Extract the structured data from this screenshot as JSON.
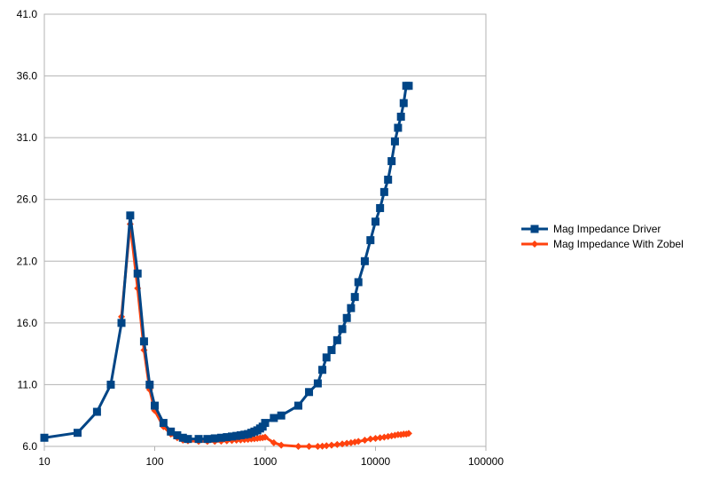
{
  "chart_data": {
    "type": "line",
    "x_scale": "log",
    "xlim": [
      10,
      100000
    ],
    "ylim": [
      6.0,
      41.0
    ],
    "y_ticks": [
      "6.0",
      "11.0",
      "16.0",
      "21.0",
      "26.0",
      "31.0",
      "36.0",
      "41.0"
    ],
    "x_ticks": [
      "10",
      "100",
      "1000",
      "10000",
      "100000"
    ],
    "grid": "horizontal",
    "legend_position": "right",
    "colors": {
      "driver": "#004586",
      "zobel": "#ff420e"
    },
    "series": [
      {
        "name": "Mag Impedance Driver",
        "color": "#004586",
        "marker": "square",
        "x": [
          10,
          20,
          30,
          40,
          50,
          60,
          70,
          80,
          90,
          100,
          120,
          140,
          160,
          180,
          200,
          250,
          300,
          350,
          400,
          450,
          500,
          550,
          600,
          650,
          700,
          750,
          800,
          850,
          900,
          950,
          1000,
          1200,
          1400,
          2000,
          2500,
          3000,
          3300,
          3600,
          4000,
          4500,
          5000,
          5500,
          6000,
          6500,
          7000,
          8000,
          9000,
          10000,
          11000,
          12000,
          13000,
          14000,
          15000,
          16000,
          17000,
          18000,
          19000,
          20000
        ],
        "y": [
          6.7,
          7.1,
          8.8,
          11.0,
          16.0,
          24.7,
          20.0,
          14.5,
          11.0,
          9.3,
          7.9,
          7.2,
          6.9,
          6.7,
          6.6,
          6.6,
          6.6,
          6.65,
          6.7,
          6.75,
          6.8,
          6.85,
          6.9,
          6.95,
          7.0,
          7.1,
          7.2,
          7.3,
          7.45,
          7.6,
          7.9,
          8.3,
          8.5,
          9.3,
          10.4,
          11.1,
          12.2,
          13.2,
          13.8,
          14.6,
          15.5,
          16.4,
          17.2,
          18.1,
          19.3,
          21.0,
          22.7,
          24.2,
          25.3,
          26.6,
          27.6,
          29.1,
          30.7,
          31.8,
          32.7,
          33.8,
          35.2,
          35.2
        ]
      },
      {
        "name": "Mag Impedance With Zobel",
        "color": "#ff420e",
        "marker": "diamond",
        "x": [
          50,
          60,
          70,
          80,
          90,
          100,
          120,
          140,
          160,
          180,
          200,
          250,
          300,
          350,
          400,
          450,
          500,
          550,
          600,
          650,
          700,
          750,
          800,
          850,
          900,
          950,
          1000,
          1200,
          1400,
          2000,
          2500,
          3000,
          3300,
          3600,
          4000,
          4500,
          5000,
          5500,
          6000,
          6500,
          7000,
          8000,
          9000,
          10000,
          11000,
          12000,
          13000,
          14000,
          15000,
          16000,
          17000,
          18000,
          19000,
          20000
        ],
        "y": [
          16.5,
          24.0,
          18.8,
          13.8,
          10.6,
          8.9,
          7.6,
          7.0,
          6.7,
          6.5,
          6.45,
          6.4,
          6.4,
          6.4,
          6.42,
          6.45,
          6.48,
          6.5,
          6.52,
          6.55,
          6.57,
          6.6,
          6.62,
          6.65,
          6.68,
          6.7,
          6.75,
          6.3,
          6.1,
          6.0,
          6.0,
          6.0,
          6.02,
          6.05,
          6.1,
          6.15,
          6.2,
          6.25,
          6.3,
          6.35,
          6.4,
          6.5,
          6.6,
          6.65,
          6.7,
          6.75,
          6.8,
          6.85,
          6.9,
          6.95,
          6.95,
          7.0,
          7.0,
          7.05
        ]
      }
    ]
  }
}
